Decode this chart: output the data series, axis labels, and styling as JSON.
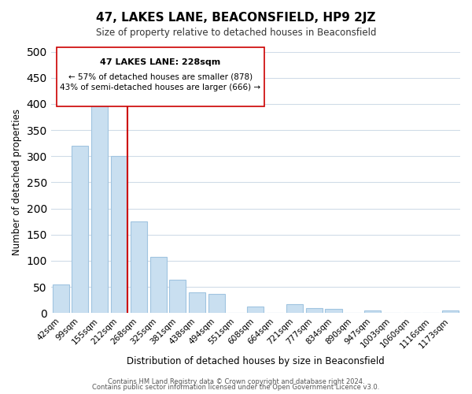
{
  "title": "47, LAKES LANE, BEACONSFIELD, HP9 2JZ",
  "subtitle": "Size of property relative to detached houses in Beaconsfield",
  "xlabel": "Distribution of detached houses by size in Beaconsfield",
  "ylabel": "Number of detached properties",
  "bar_labels": [
    "42sqm",
    "99sqm",
    "155sqm",
    "212sqm",
    "268sqm",
    "325sqm",
    "381sqm",
    "438sqm",
    "494sqm",
    "551sqm",
    "608sqm",
    "664sqm",
    "721sqm",
    "777sqm",
    "834sqm",
    "890sqm",
    "947sqm",
    "1003sqm",
    "1060sqm",
    "1116sqm",
    "1173sqm"
  ],
  "bar_values": [
    55,
    320,
    400,
    300,
    175,
    108,
    63,
    40,
    37,
    0,
    13,
    0,
    17,
    10,
    8,
    0,
    5,
    0,
    0,
    0,
    5
  ],
  "bar_color": "#c9dff0",
  "bar_edge_color": "#a0c4e0",
  "ylim": [
    0,
    500
  ],
  "yticks": [
    0,
    50,
    100,
    150,
    200,
    250,
    300,
    350,
    400,
    450,
    500
  ],
  "property_line_x": 3,
  "property_line_color": "#cc0000",
  "annotation_title": "47 LAKES LANE: 228sqm",
  "annotation_line1": "← 57% of detached houses are smaller (878)",
  "annotation_line2": "43% of semi-detached houses are larger (666) →",
  "footer_line1": "Contains HM Land Registry data © Crown copyright and database right 2024.",
  "footer_line2": "Contains public sector information licensed under the Open Government Licence v3.0.",
  "background_color": "#ffffff",
  "grid_color": "#d0dce8"
}
